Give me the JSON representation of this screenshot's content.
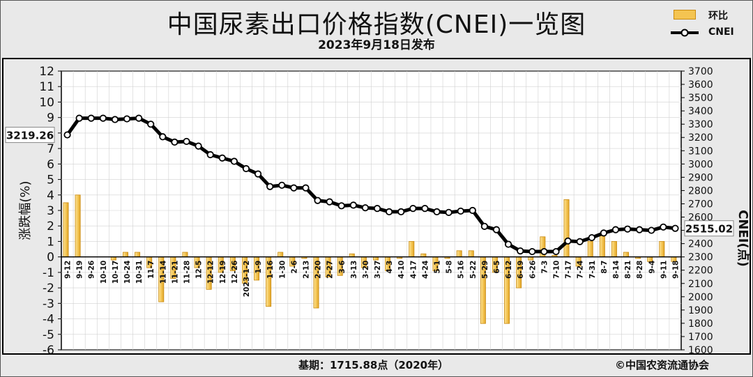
{
  "header": {
    "title": "中国尿素出口价格指数(CNEI)一览图",
    "subtitle": "2023年9月18日发布"
  },
  "legend": {
    "bar_label": "环比",
    "line_label": "CNEI"
  },
  "footer": {
    "base_text": "基期：1715.88点（2020年）",
    "copyright": "©中国农资流通协会"
  },
  "colors": {
    "bar_fill": "#f4c451",
    "bar_edge": "#c98a10",
    "line": "#000000",
    "plot_bg": "#ffffff",
    "grid": "#d0d0d0"
  },
  "chart_data": {
    "type": "bar+line",
    "title": "中国尿素出口价格指数(CNEI)一览图",
    "subtitle": "2023年9月18日发布",
    "ylabel_left": "涨跌幅(%)",
    "ylabel_right": "CNEI(点)",
    "ylim_left": [
      -6,
      12
    ],
    "ylim_right": [
      1600,
      3700
    ],
    "yticks_left": [
      "12",
      "11",
      "10",
      "9",
      "8",
      "7",
      "6",
      "5",
      "4",
      "3",
      "2",
      "1",
      "0",
      "-1",
      "-2",
      "-3",
      "-4",
      "-5",
      "-6"
    ],
    "yticks_right": [
      "3700",
      "3600",
      "3500",
      "3400",
      "3300",
      "3200",
      "3100",
      "3000",
      "2900",
      "2800",
      "2700",
      "2600",
      "2500",
      "2400",
      "2300",
      "2200",
      "2100",
      "2000",
      "1900",
      "1800",
      "1700",
      "1600"
    ],
    "categories": [
      "9-12",
      "9-19",
      "9-26",
      "10-10",
      "10-17",
      "10-24",
      "10-31",
      "11-7",
      "11-14",
      "11-21",
      "11-28",
      "12-5",
      "12-12",
      "12-19",
      "12-26",
      "2023-1-2",
      "1-9",
      "1-16",
      "1-30",
      "2-6",
      "2-13",
      "2-20",
      "2-27",
      "3-6",
      "3-13",
      "3-20",
      "3-27",
      "4-3",
      "4-10",
      "4-17",
      "4-24",
      "5-1",
      "5-8",
      "5-16",
      "5-22",
      "5-29",
      "6-5",
      "6-12",
      "6-19",
      "6-26",
      "7-3",
      "7-10",
      "7-17",
      "7-24",
      "7-31",
      "8-7",
      "8-14",
      "8-21",
      "8-28",
      "9-4",
      "9-11",
      "9-18"
    ],
    "series": [
      {
        "name": "环比",
        "type": "bar",
        "axis": "left",
        "values": [
          3.5,
          4.0,
          0.0,
          0.0,
          -0.2,
          0.3,
          0.3,
          -0.7,
          -2.9,
          -1.4,
          0.3,
          -0.7,
          -2.1,
          -1.0,
          -0.9,
          -1.7,
          -1.5,
          -3.2,
          0.3,
          -0.6,
          -0.1,
          -3.3,
          -1.3,
          -1.2,
          0.2,
          -0.7,
          -0.2,
          -0.9,
          -0.1,
          1.0,
          0.2,
          -0.9,
          -0.1,
          0.4,
          0.4,
          -4.3,
          -1.0,
          -4.3,
          -2.0,
          -0.2,
          1.3,
          0.1,
          3.7,
          -0.6,
          1.0,
          1.5,
          1.0,
          0.3,
          -0.1,
          -0.3,
          1.0,
          -0.3
        ]
      },
      {
        "name": "CNEI",
        "type": "line",
        "axis": "right",
        "values": [
          3219.26,
          3345,
          3345,
          3345,
          3335,
          3340,
          3345,
          3300,
          3205,
          3165,
          3170,
          3135,
          3070,
          3045,
          3020,
          2965,
          2925,
          2830,
          2840,
          2820,
          2820,
          2725,
          2715,
          2685,
          2690,
          2670,
          2665,
          2640,
          2640,
          2665,
          2665,
          2640,
          2635,
          2645,
          2650,
          2530,
          2505,
          2395,
          2345,
          2340,
          2340,
          2340,
          2420,
          2415,
          2445,
          2480,
          2505,
          2510,
          2505,
          2500,
          2525,
          2515.02
        ]
      }
    ],
    "annotations": [
      "3219.26",
      "2515.02"
    ],
    "grid": true,
    "legend_position": "top-right"
  }
}
